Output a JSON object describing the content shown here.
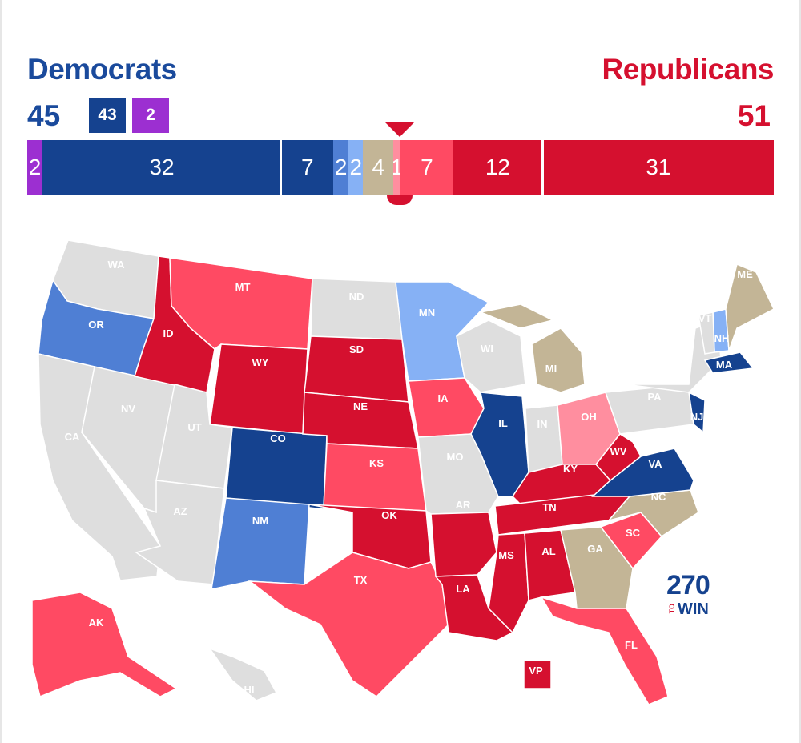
{
  "header": {
    "dem_title": "Democrats",
    "rep_title": "Republicans",
    "dem_total": "45",
    "rep_total": "51",
    "dem_chip": "43",
    "ind_chip": "2"
  },
  "bar_segments": [
    {
      "label": "2",
      "seats": 2,
      "color": "#9c2fd1"
    },
    {
      "label": "32",
      "seats": 32,
      "color": "#15428f"
    },
    {
      "label": "7",
      "seats": 7,
      "color": "#15428f"
    },
    {
      "label": "2",
      "seats": 2,
      "color": "#4f7fd4"
    },
    {
      "label": "2",
      "seats": 2,
      "color": "#86b1f5"
    },
    {
      "label": "4",
      "seats": 4,
      "color": "#c3b596"
    },
    {
      "label": "1",
      "seats": 1,
      "color": "#ff8e9f"
    },
    {
      "label": "7",
      "seats": 7,
      "color": "#ff4a63"
    },
    {
      "label": "12",
      "seats": 12,
      "color": "#d5102f"
    },
    {
      "label": "31",
      "seats": 31,
      "color": "#d5102f"
    }
  ],
  "colors": {
    "not_up": "#dedede",
    "safe_d": "#15428f",
    "likely_d": "#4f7fd4",
    "lean_d": "#86b1f5",
    "tossup": "#c3b596",
    "lean_r": "#ff8e9f",
    "likely_r": "#ff4a63",
    "safe_r": "#d5102f",
    "dem_text": "#1a4a9c",
    "rep_text": "#d5102f"
  },
  "states": [
    {
      "abbr": "WA",
      "rating": "not_up"
    },
    {
      "abbr": "OR",
      "rating": "likely_d"
    },
    {
      "abbr": "CA",
      "rating": "not_up"
    },
    {
      "abbr": "NV",
      "rating": "not_up"
    },
    {
      "abbr": "ID",
      "rating": "safe_r"
    },
    {
      "abbr": "MT",
      "rating": "likely_r"
    },
    {
      "abbr": "WY",
      "rating": "safe_r"
    },
    {
      "abbr": "UT",
      "rating": "not_up"
    },
    {
      "abbr": "AZ",
      "rating": "not_up"
    },
    {
      "abbr": "CO",
      "rating": "safe_d"
    },
    {
      "abbr": "NM",
      "rating": "likely_d"
    },
    {
      "abbr": "ND",
      "rating": "not_up"
    },
    {
      "abbr": "SD",
      "rating": "safe_r"
    },
    {
      "abbr": "NE",
      "rating": "safe_r"
    },
    {
      "abbr": "KS",
      "rating": "likely_r"
    },
    {
      "abbr": "OK",
      "rating": "safe_r"
    },
    {
      "abbr": "TX",
      "rating": "likely_r"
    },
    {
      "abbr": "MN",
      "rating": "lean_d"
    },
    {
      "abbr": "IA",
      "rating": "likely_r"
    },
    {
      "abbr": "MO",
      "rating": "not_up"
    },
    {
      "abbr": "AR",
      "rating": "safe_r"
    },
    {
      "abbr": "LA",
      "rating": "safe_r"
    },
    {
      "abbr": "WI",
      "rating": "not_up"
    },
    {
      "abbr": "IL",
      "rating": "safe_d"
    },
    {
      "abbr": "MI",
      "rating": "tossup"
    },
    {
      "abbr": "IN",
      "rating": "not_up"
    },
    {
      "abbr": "OH",
      "rating": "lean_r"
    },
    {
      "abbr": "KY",
      "rating": "safe_r"
    },
    {
      "abbr": "TN",
      "rating": "safe_r"
    },
    {
      "abbr": "MS",
      "rating": "safe_r"
    },
    {
      "abbr": "AL",
      "rating": "safe_r"
    },
    {
      "abbr": "GA",
      "rating": "tossup"
    },
    {
      "abbr": "FL",
      "rating": "likely_r"
    },
    {
      "abbr": "SC",
      "rating": "likely_r"
    },
    {
      "abbr": "NC",
      "rating": "tossup"
    },
    {
      "abbr": "VA",
      "rating": "safe_d"
    },
    {
      "abbr": "WV",
      "rating": "safe_r"
    },
    {
      "abbr": "PA",
      "rating": "not_up"
    },
    {
      "abbr": "NY",
      "rating": "not_up"
    },
    {
      "abbr": "NJ",
      "rating": "safe_d"
    },
    {
      "abbr": "MA",
      "rating": "safe_d"
    },
    {
      "abbr": "NH",
      "rating": "lean_d"
    },
    {
      "abbr": "VT",
      "rating": "not_up"
    },
    {
      "abbr": "ME",
      "rating": "tossup"
    },
    {
      "abbr": "AK",
      "rating": "likely_r"
    },
    {
      "abbr": "HI",
      "rating": "not_up"
    },
    {
      "abbr": "VP",
      "rating": "safe_r"
    }
  ],
  "logo": {
    "number": "270",
    "to": "TO",
    "win": "WIN"
  }
}
